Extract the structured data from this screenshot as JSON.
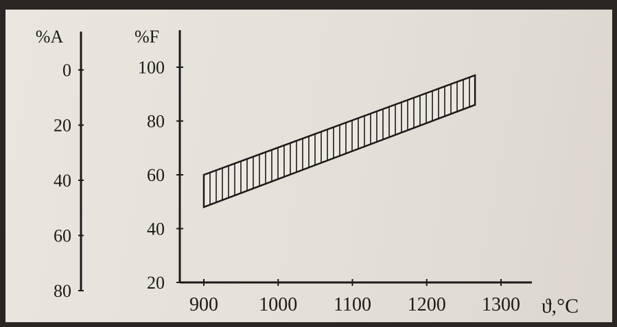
{
  "chart_data": {
    "type": "area",
    "title": "",
    "x_axis": {
      "label": "ϑ,°C",
      "range": [
        900,
        1300
      ],
      "ticks": [
        900,
        1000,
        1100,
        1200,
        1300
      ],
      "tick_labels": [
        "900",
        "1000",
        "1100",
        "1200",
        "1300"
      ]
    },
    "y_axis_F": {
      "label": "%F",
      "range": [
        20,
        100
      ],
      "ticks": [
        20,
        40,
        60,
        80,
        100
      ],
      "tick_labels": [
        "20",
        "40",
        "60",
        "80",
        "100"
      ]
    },
    "y_axis_A": {
      "label": "%A",
      "range": [
        0,
        80
      ],
      "direction": "inverted",
      "ticks": [
        0,
        20,
        40,
        60,
        80
      ],
      "tick_labels": [
        "0",
        "20",
        "40",
        "60",
        "80"
      ]
    },
    "band": {
      "fill_pattern": "vertical-hatch",
      "x": [
        900,
        1265
      ],
      "lower": [
        48,
        86
      ],
      "upper": [
        60,
        97
      ]
    }
  },
  "colors": {
    "ink": "#1c1a19",
    "paper": "#e6e2da",
    "frame": "#2a2624"
  }
}
